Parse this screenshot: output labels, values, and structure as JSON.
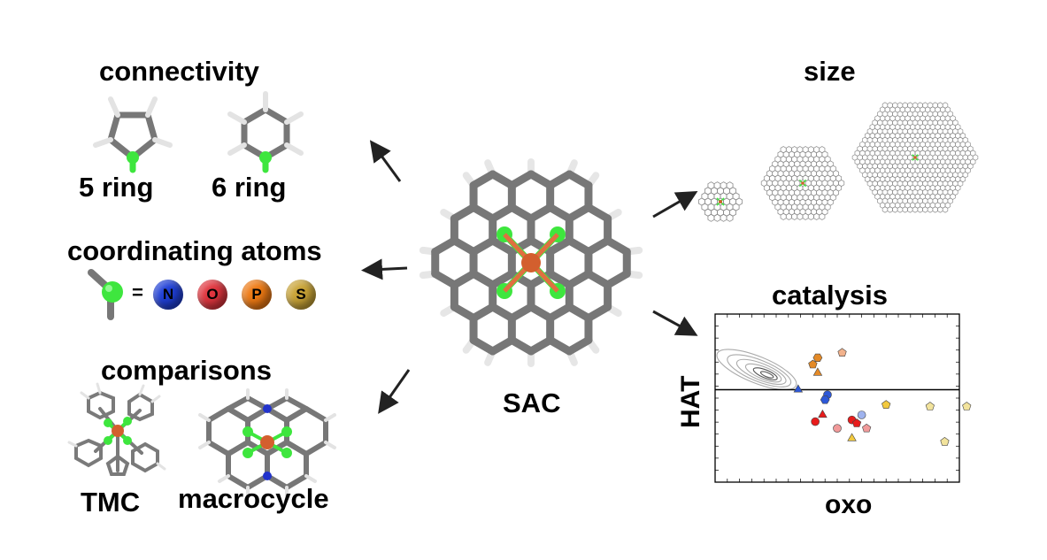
{
  "labels": {
    "connectivity": "connectivity",
    "ring5": "5 ring",
    "ring6": "6 ring",
    "coordinating": "coordinating atoms",
    "comparisons": "comparisons",
    "tmc": "TMC",
    "macrocycle": "macrocycle",
    "sac": "SAC",
    "size": "size",
    "catalysis": "catalysis",
    "hat": "HAT",
    "oxo": "oxo",
    "equals": "="
  },
  "atoms": [
    {
      "symbol": "N",
      "color": "#1f3fd6"
    },
    {
      "symbol": "O",
      "color": "#e0363f"
    },
    {
      "symbol": "P",
      "color": "#ee7a14"
    },
    {
      "symbol": "S",
      "color": "#c9a437"
    }
  ],
  "colors": {
    "bond": "#777777",
    "hydrogen": "#e6e6e6",
    "coord": "#3ee63e",
    "metal": "#d35f2e",
    "nitrogen": "#2233cc",
    "arrow": "#222222"
  },
  "icons": [
    "pyrrole-icon",
    "pyridine-icon",
    "ligand-stub-icon",
    "tmc-icon",
    "macrocycle-icon",
    "sac-icon",
    "graphene-flake-icon",
    "arrow-icon"
  ],
  "chart_data": {
    "type": "scatter",
    "title": "catalysis",
    "xlabel": "oxo",
    "ylabel": "HAT",
    "xlim": [
      0,
      100
    ],
    "ylim": [
      0,
      100
    ],
    "grid": false,
    "reference_line_y": 55,
    "density_contour": {
      "center": [
        17,
        67
      ],
      "note": "grey KDE contours"
    },
    "series": [
      {
        "marker": "pentagon",
        "color": "#e48a27",
        "points": [
          [
            40,
            70
          ]
        ]
      },
      {
        "marker": "hexagon",
        "color": "#e48a27",
        "points": [
          [
            42,
            74
          ]
        ]
      },
      {
        "marker": "pentagon",
        "color": "#f2b28c",
        "points": [
          [
            52,
            77
          ]
        ]
      },
      {
        "marker": "triangle",
        "color": "#e48a27",
        "points": [
          [
            42,
            65
          ]
        ]
      },
      {
        "marker": "triangle",
        "color": "#2d58d8",
        "points": [
          [
            34,
            55
          ]
        ]
      },
      {
        "marker": "circle",
        "color": "#2d58d8",
        "points": [
          [
            46,
            52
          ]
        ]
      },
      {
        "marker": "hexagon",
        "color": "#2d58d8",
        "points": [
          [
            45,
            49
          ]
        ]
      },
      {
        "marker": "circle",
        "color": "#e81c1c",
        "points": [
          [
            41,
            36
          ]
        ]
      },
      {
        "marker": "triangle",
        "color": "#e81c1c",
        "points": [
          [
            44,
            40
          ]
        ]
      },
      {
        "marker": "circle",
        "color": "#e81c1c",
        "points": [
          [
            56,
            37
          ]
        ]
      },
      {
        "marker": "pentagon",
        "color": "#e81c1c",
        "points": [
          [
            58,
            35
          ]
        ]
      },
      {
        "marker": "circle",
        "color": "#f19a9a",
        "points": [
          [
            50,
            32
          ]
        ]
      },
      {
        "marker": "pentagon",
        "color": "#f19a9a",
        "points": [
          [
            62,
            32
          ]
        ]
      },
      {
        "marker": "circle",
        "color": "#9fb3ee",
        "points": [
          [
            60,
            40
          ]
        ]
      },
      {
        "marker": "pentagon",
        "color": "#f2c93e",
        "points": [
          [
            70,
            46
          ]
        ]
      },
      {
        "marker": "triangle",
        "color": "#f2c93e",
        "points": [
          [
            56,
            26
          ]
        ]
      },
      {
        "marker": "pentagon",
        "color": "#f2e39c",
        "points": [
          [
            88,
            45
          ],
          [
            94,
            24
          ],
          [
            103,
            45
          ]
        ]
      }
    ]
  }
}
